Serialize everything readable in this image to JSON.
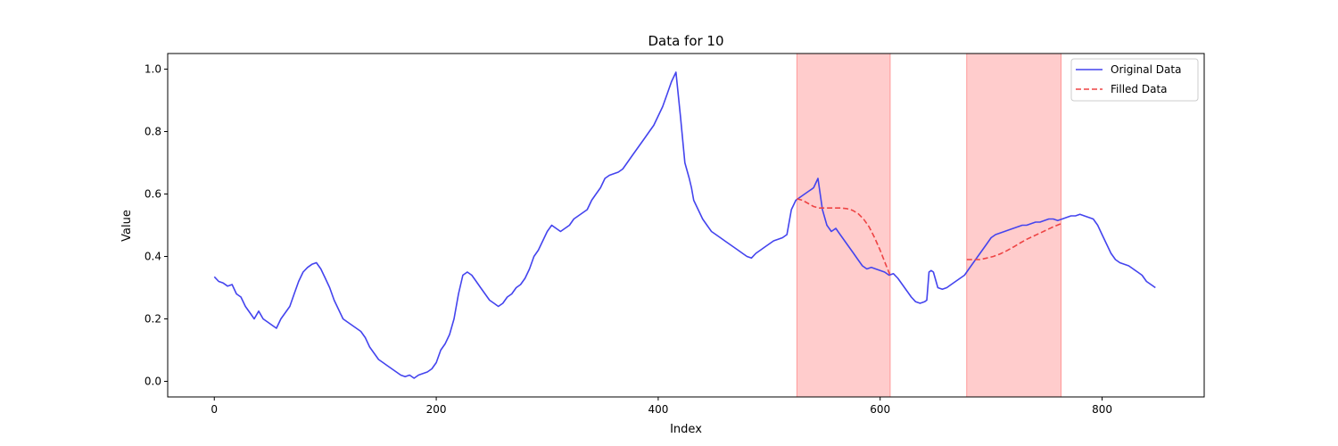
{
  "chart_data": {
    "type": "line",
    "title": "Data for 10",
    "xlabel": "Index",
    "ylabel": "Value",
    "xlim": [
      -42,
      892
    ],
    "ylim": [
      -0.05,
      1.05
    ],
    "x_ticks": [
      0,
      200,
      400,
      600,
      800
    ],
    "y_ticks": [
      0.0,
      0.2,
      0.4,
      0.6,
      0.8,
      1.0
    ],
    "y_tick_labels": [
      "0.0",
      "0.2",
      "0.4",
      "0.6",
      "0.8",
      "1.0"
    ],
    "grid": false,
    "legend_position": "top-right",
    "highlight_color": "#ff9999",
    "shaded_regions": [
      {
        "x_start": 525,
        "x_end": 609
      },
      {
        "x_start": 678,
        "x_end": 763
      }
    ],
    "series": [
      {
        "name": "Original Data",
        "color": "#4444ee",
        "style": "solid",
        "x": [
          0,
          4,
          8,
          12,
          16,
          20,
          24,
          28,
          32,
          36,
          40,
          44,
          48,
          52,
          56,
          60,
          64,
          68,
          72,
          76,
          80,
          84,
          88,
          92,
          96,
          100,
          104,
          108,
          112,
          116,
          120,
          124,
          128,
          132,
          136,
          140,
          144,
          148,
          152,
          156,
          160,
          164,
          168,
          172,
          176,
          180,
          184,
          188,
          192,
          196,
          200,
          204,
          208,
          212,
          216,
          220,
          224,
          228,
          232,
          236,
          240,
          244,
          248,
          252,
          256,
          260,
          264,
          268,
          272,
          276,
          280,
          284,
          288,
          292,
          296,
          300,
          304,
          308,
          312,
          316,
          320,
          324,
          328,
          332,
          336,
          340,
          344,
          348,
          352,
          356,
          360,
          364,
          368,
          372,
          376,
          380,
          384,
          388,
          392,
          396,
          400,
          404,
          408,
          412,
          416,
          420,
          424,
          428,
          430,
          432,
          436,
          440,
          444,
          448,
          452,
          456,
          460,
          464,
          468,
          472,
          476,
          480,
          484,
          488,
          492,
          496,
          500,
          504,
          508,
          512,
          516,
          520,
          524,
          528,
          532,
          536,
          538,
          540,
          544,
          548,
          552,
          556,
          560,
          564,
          568,
          572,
          576,
          580,
          584,
          588,
          592,
          596,
          600,
          604,
          608,
          612,
          616,
          620,
          624,
          628,
          632,
          636,
          640,
          642,
          644,
          646,
          648,
          652,
          656,
          660,
          664,
          668,
          672,
          676,
          680,
          684,
          688,
          692,
          696,
          700,
          704,
          708,
          712,
          716,
          720,
          724,
          728,
          732,
          736,
          740,
          744,
          748,
          752,
          756,
          760,
          764,
          768,
          772,
          776,
          780,
          784,
          788,
          792,
          796,
          800,
          804,
          808,
          812,
          816,
          820,
          824,
          828,
          832,
          836,
          840,
          844,
          848
        ],
        "y": [
          0.335,
          0.32,
          0.315,
          0.305,
          0.31,
          0.28,
          0.27,
          0.24,
          0.22,
          0.2,
          0.225,
          0.2,
          0.19,
          0.18,
          0.17,
          0.2,
          0.22,
          0.24,
          0.28,
          0.32,
          0.35,
          0.365,
          0.375,
          0.38,
          0.36,
          0.33,
          0.3,
          0.26,
          0.23,
          0.2,
          0.19,
          0.18,
          0.17,
          0.16,
          0.14,
          0.11,
          0.09,
          0.07,
          0.06,
          0.05,
          0.04,
          0.03,
          0.02,
          0.015,
          0.02,
          0.01,
          0.02,
          0.025,
          0.03,
          0.04,
          0.06,
          0.1,
          0.12,
          0.15,
          0.2,
          0.28,
          0.34,
          0.35,
          0.34,
          0.32,
          0.3,
          0.28,
          0.26,
          0.25,
          0.24,
          0.25,
          0.27,
          0.28,
          0.3,
          0.31,
          0.33,
          0.36,
          0.4,
          0.42,
          0.45,
          0.48,
          0.5,
          0.49,
          0.48,
          0.49,
          0.5,
          0.52,
          0.53,
          0.54,
          0.55,
          0.58,
          0.6,
          0.62,
          0.65,
          0.66,
          0.665,
          0.67,
          0.68,
          0.7,
          0.72,
          0.74,
          0.76,
          0.78,
          0.8,
          0.82,
          0.85,
          0.88,
          0.92,
          0.96,
          0.99,
          0.85,
          0.7,
          0.65,
          0.62,
          0.58,
          0.55,
          0.52,
          0.5,
          0.48,
          0.47,
          0.46,
          0.45,
          0.44,
          0.43,
          0.42,
          0.41,
          0.4,
          0.395,
          0.41,
          0.42,
          0.43,
          0.44,
          0.45,
          0.455,
          0.46,
          0.47,
          0.55,
          0.58,
          0.59,
          0.6,
          0.61,
          0.615,
          0.62,
          0.65,
          0.55,
          0.5,
          0.48,
          0.49,
          0.47,
          0.45,
          0.43,
          0.41,
          0.39,
          0.37,
          0.36,
          0.365,
          0.36,
          0.355,
          0.35,
          0.34,
          0.345,
          0.33,
          0.31,
          0.29,
          0.27,
          0.255,
          0.25,
          0.255,
          0.26,
          0.35,
          0.355,
          0.35,
          0.3,
          0.295,
          0.3,
          0.31,
          0.32,
          0.33,
          0.34,
          0.36,
          0.38,
          0.4,
          0.42,
          0.44,
          0.46,
          0.47,
          0.475,
          0.48,
          0.485,
          0.49,
          0.495,
          0.5,
          0.5,
          0.505,
          0.51,
          0.51,
          0.515,
          0.52,
          0.52,
          0.515,
          0.52,
          0.525,
          0.53,
          0.53,
          0.535,
          0.53,
          0.525,
          0.52,
          0.5,
          0.47,
          0.44,
          0.41,
          0.39,
          0.38,
          0.375,
          0.37,
          0.36,
          0.35,
          0.34,
          0.32,
          0.31,
          0.3
        ]
      },
      {
        "name": "Filled Data",
        "color": "#ee4444",
        "style": "dashed",
        "segments": [
          {
            "x": [
              525,
              530,
              535,
              540,
              545,
              550,
              555,
              560,
              565,
              570,
              575,
              580,
              585,
              590,
              595,
              600,
              605,
              609
            ],
            "y": [
              0.585,
              0.58,
              0.57,
              0.56,
              0.555,
              0.555,
              0.555,
              0.555,
              0.555,
              0.553,
              0.548,
              0.538,
              0.52,
              0.495,
              0.46,
              0.42,
              0.375,
              0.34
            ]
          },
          {
            "x": [
              678,
              684,
              690,
              696,
              702,
              708,
              714,
              720,
              726,
              732,
              738,
              744,
              750,
              756,
              763
            ],
            "y": [
              0.39,
              0.39,
              0.39,
              0.395,
              0.4,
              0.408,
              0.418,
              0.43,
              0.443,
              0.455,
              0.465,
              0.475,
              0.485,
              0.495,
              0.505
            ]
          }
        ]
      }
    ]
  }
}
